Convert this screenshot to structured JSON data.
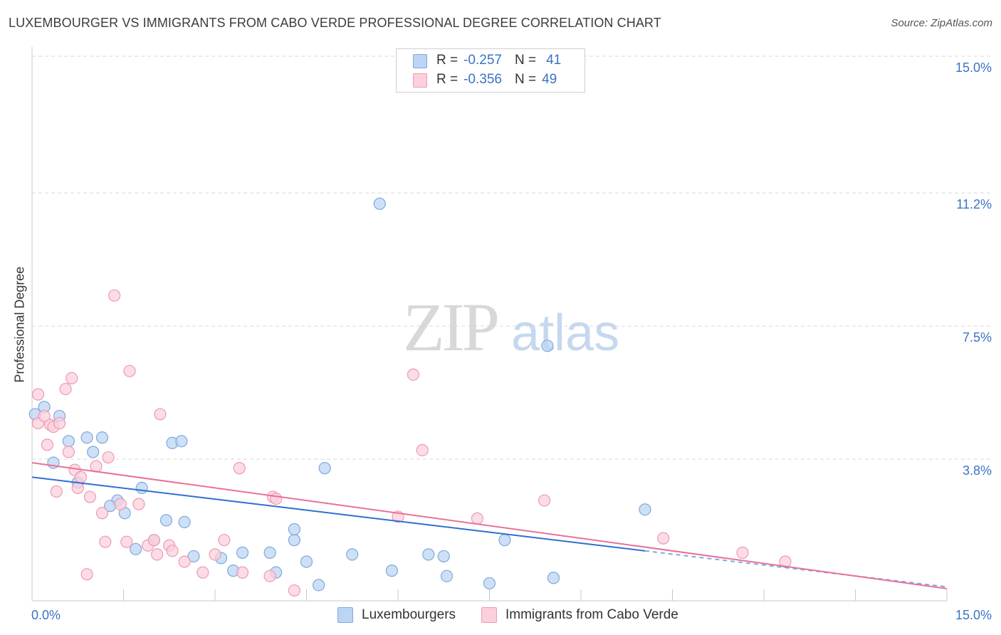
{
  "title": "LUXEMBOURGER VS IMMIGRANTS FROM CABO VERDE PROFESSIONAL DEGREE CORRELATION CHART",
  "source": "Source: ZipAtlas.com",
  "watermark": {
    "zip": "ZIP",
    "atlas": "atlas"
  },
  "stats": [
    {
      "r_label": "R =",
      "r_value": "-0.257",
      "n_label": "N =",
      "n_value": "41",
      "color": "#bcd5f3"
    },
    {
      "r_label": "R =",
      "r_value": "-0.356",
      "n_label": "N =",
      "n_value": "49",
      "color": "#fbd0dc"
    }
  ],
  "legend": [
    {
      "label": "Luxembourgers",
      "color": "#bcd5f3"
    },
    {
      "label": "Immigrants from Cabo Verde",
      "color": "#fbd0dc"
    }
  ],
  "colors": {
    "blue_fill": "#bcd5f3",
    "blue_stroke": "#7fa8dd",
    "blue_line": "#2f6fd1",
    "pink_fill": "#fbd0dc",
    "pink_stroke": "#ef99b2",
    "pink_line": "#e8719a",
    "tick_label": "#3a73c4",
    "grid": "#d9d9d9"
  },
  "chart_data": {
    "type": "scatter",
    "title": "LUXEMBOURGER VS IMMIGRANTS FROM CABO VERDE PROFESSIONAL DEGREE CORRELATION CHART",
    "xlabel": "",
    "ylabel": "Professional Degree",
    "xlim": [
      0,
      15
    ],
    "ylim": [
      0,
      15
    ],
    "x_tick_labels": [
      "0.0%",
      "15.0%"
    ],
    "y_ticks": [
      3.8,
      7.5,
      11.2,
      15.0
    ],
    "y_tick_labels": [
      "3.8%",
      "7.5%",
      "11.2%",
      "15.0%"
    ],
    "grid": true,
    "legend_position": "bottom",
    "series": [
      {
        "name": "Luxembourgers",
        "color": "#bcd5f3",
        "points": [
          [
            0.05,
            5.05
          ],
          [
            0.2,
            5.25
          ],
          [
            0.45,
            5.0
          ],
          [
            0.35,
            3.7
          ],
          [
            0.6,
            4.3
          ],
          [
            0.9,
            4.4
          ],
          [
            1.15,
            4.4
          ],
          [
            1.0,
            4.0
          ],
          [
            0.75,
            3.15
          ],
          [
            1.4,
            2.65
          ],
          [
            1.28,
            2.5
          ],
          [
            1.52,
            2.3
          ],
          [
            1.8,
            3.0
          ],
          [
            1.7,
            1.3
          ],
          [
            2.0,
            1.55
          ],
          [
            2.2,
            2.1
          ],
          [
            2.5,
            2.05
          ],
          [
            2.3,
            4.25
          ],
          [
            2.45,
            4.3
          ],
          [
            2.65,
            1.1
          ],
          [
            3.1,
            1.05
          ],
          [
            3.3,
            0.7
          ],
          [
            3.45,
            1.2
          ],
          [
            3.9,
            1.2
          ],
          [
            4.0,
            0.65
          ],
          [
            4.3,
            1.55
          ],
          [
            4.3,
            1.85
          ],
          [
            4.5,
            0.95
          ],
          [
            4.7,
            0.3
          ],
          [
            4.8,
            3.55
          ],
          [
            5.25,
            1.15
          ],
          [
            5.7,
            10.9
          ],
          [
            5.9,
            0.7
          ],
          [
            6.5,
            1.15
          ],
          [
            6.75,
            1.1
          ],
          [
            6.8,
            0.55
          ],
          [
            7.5,
            0.35
          ],
          [
            7.75,
            1.55
          ],
          [
            8.45,
            6.95
          ],
          [
            8.55,
            0.5
          ],
          [
            10.05,
            2.4
          ]
        ]
      },
      {
        "name": "Immigrants from Cabo Verde",
        "color": "#fbd0dc",
        "points": [
          [
            0.1,
            4.8
          ],
          [
            0.1,
            5.6
          ],
          [
            0.2,
            5.0
          ],
          [
            0.25,
            4.2
          ],
          [
            0.3,
            4.75
          ],
          [
            0.35,
            4.7
          ],
          [
            0.4,
            2.9
          ],
          [
            0.45,
            4.8
          ],
          [
            0.55,
            5.75
          ],
          [
            0.6,
            4.0
          ],
          [
            0.65,
            6.05
          ],
          [
            0.7,
            3.5
          ],
          [
            0.75,
            3.0
          ],
          [
            0.8,
            3.3
          ],
          [
            0.9,
            0.6
          ],
          [
            0.95,
            2.75
          ],
          [
            1.05,
            3.6
          ],
          [
            1.15,
            2.3
          ],
          [
            1.2,
            1.5
          ],
          [
            1.25,
            3.85
          ],
          [
            1.35,
            8.35
          ],
          [
            1.45,
            2.55
          ],
          [
            1.55,
            1.5
          ],
          [
            1.6,
            6.25
          ],
          [
            1.75,
            2.55
          ],
          [
            1.9,
            1.4
          ],
          [
            2.0,
            1.55
          ],
          [
            2.05,
            1.15
          ],
          [
            2.1,
            5.05
          ],
          [
            2.25,
            1.4
          ],
          [
            2.3,
            1.25
          ],
          [
            2.5,
            0.95
          ],
          [
            2.8,
            0.65
          ],
          [
            3.0,
            1.15
          ],
          [
            3.15,
            1.55
          ],
          [
            3.4,
            3.55
          ],
          [
            3.45,
            0.65
          ],
          [
            3.9,
            0.55
          ],
          [
            3.95,
            2.75
          ],
          [
            4.0,
            2.7
          ],
          [
            4.3,
            0.15
          ],
          [
            6.0,
            2.2
          ],
          [
            6.25,
            6.15
          ],
          [
            6.4,
            4.05
          ],
          [
            7.3,
            2.15
          ],
          [
            8.4,
            2.65
          ],
          [
            10.35,
            1.6
          ],
          [
            11.65,
            1.2
          ],
          [
            12.35,
            0.95
          ]
        ]
      }
    ],
    "trend_lines": [
      {
        "series": "Luxembourgers",
        "color": "#2f6fd1",
        "x": [
          0,
          10.05
        ],
        "y": [
          3.3,
          1.25
        ],
        "dashed_extension_to": [
          15,
          0.25
        ]
      },
      {
        "series": "Immigrants from Cabo Verde",
        "color": "#e8719a",
        "x": [
          0,
          15
        ],
        "y": [
          3.7,
          0.2
        ]
      }
    ]
  }
}
